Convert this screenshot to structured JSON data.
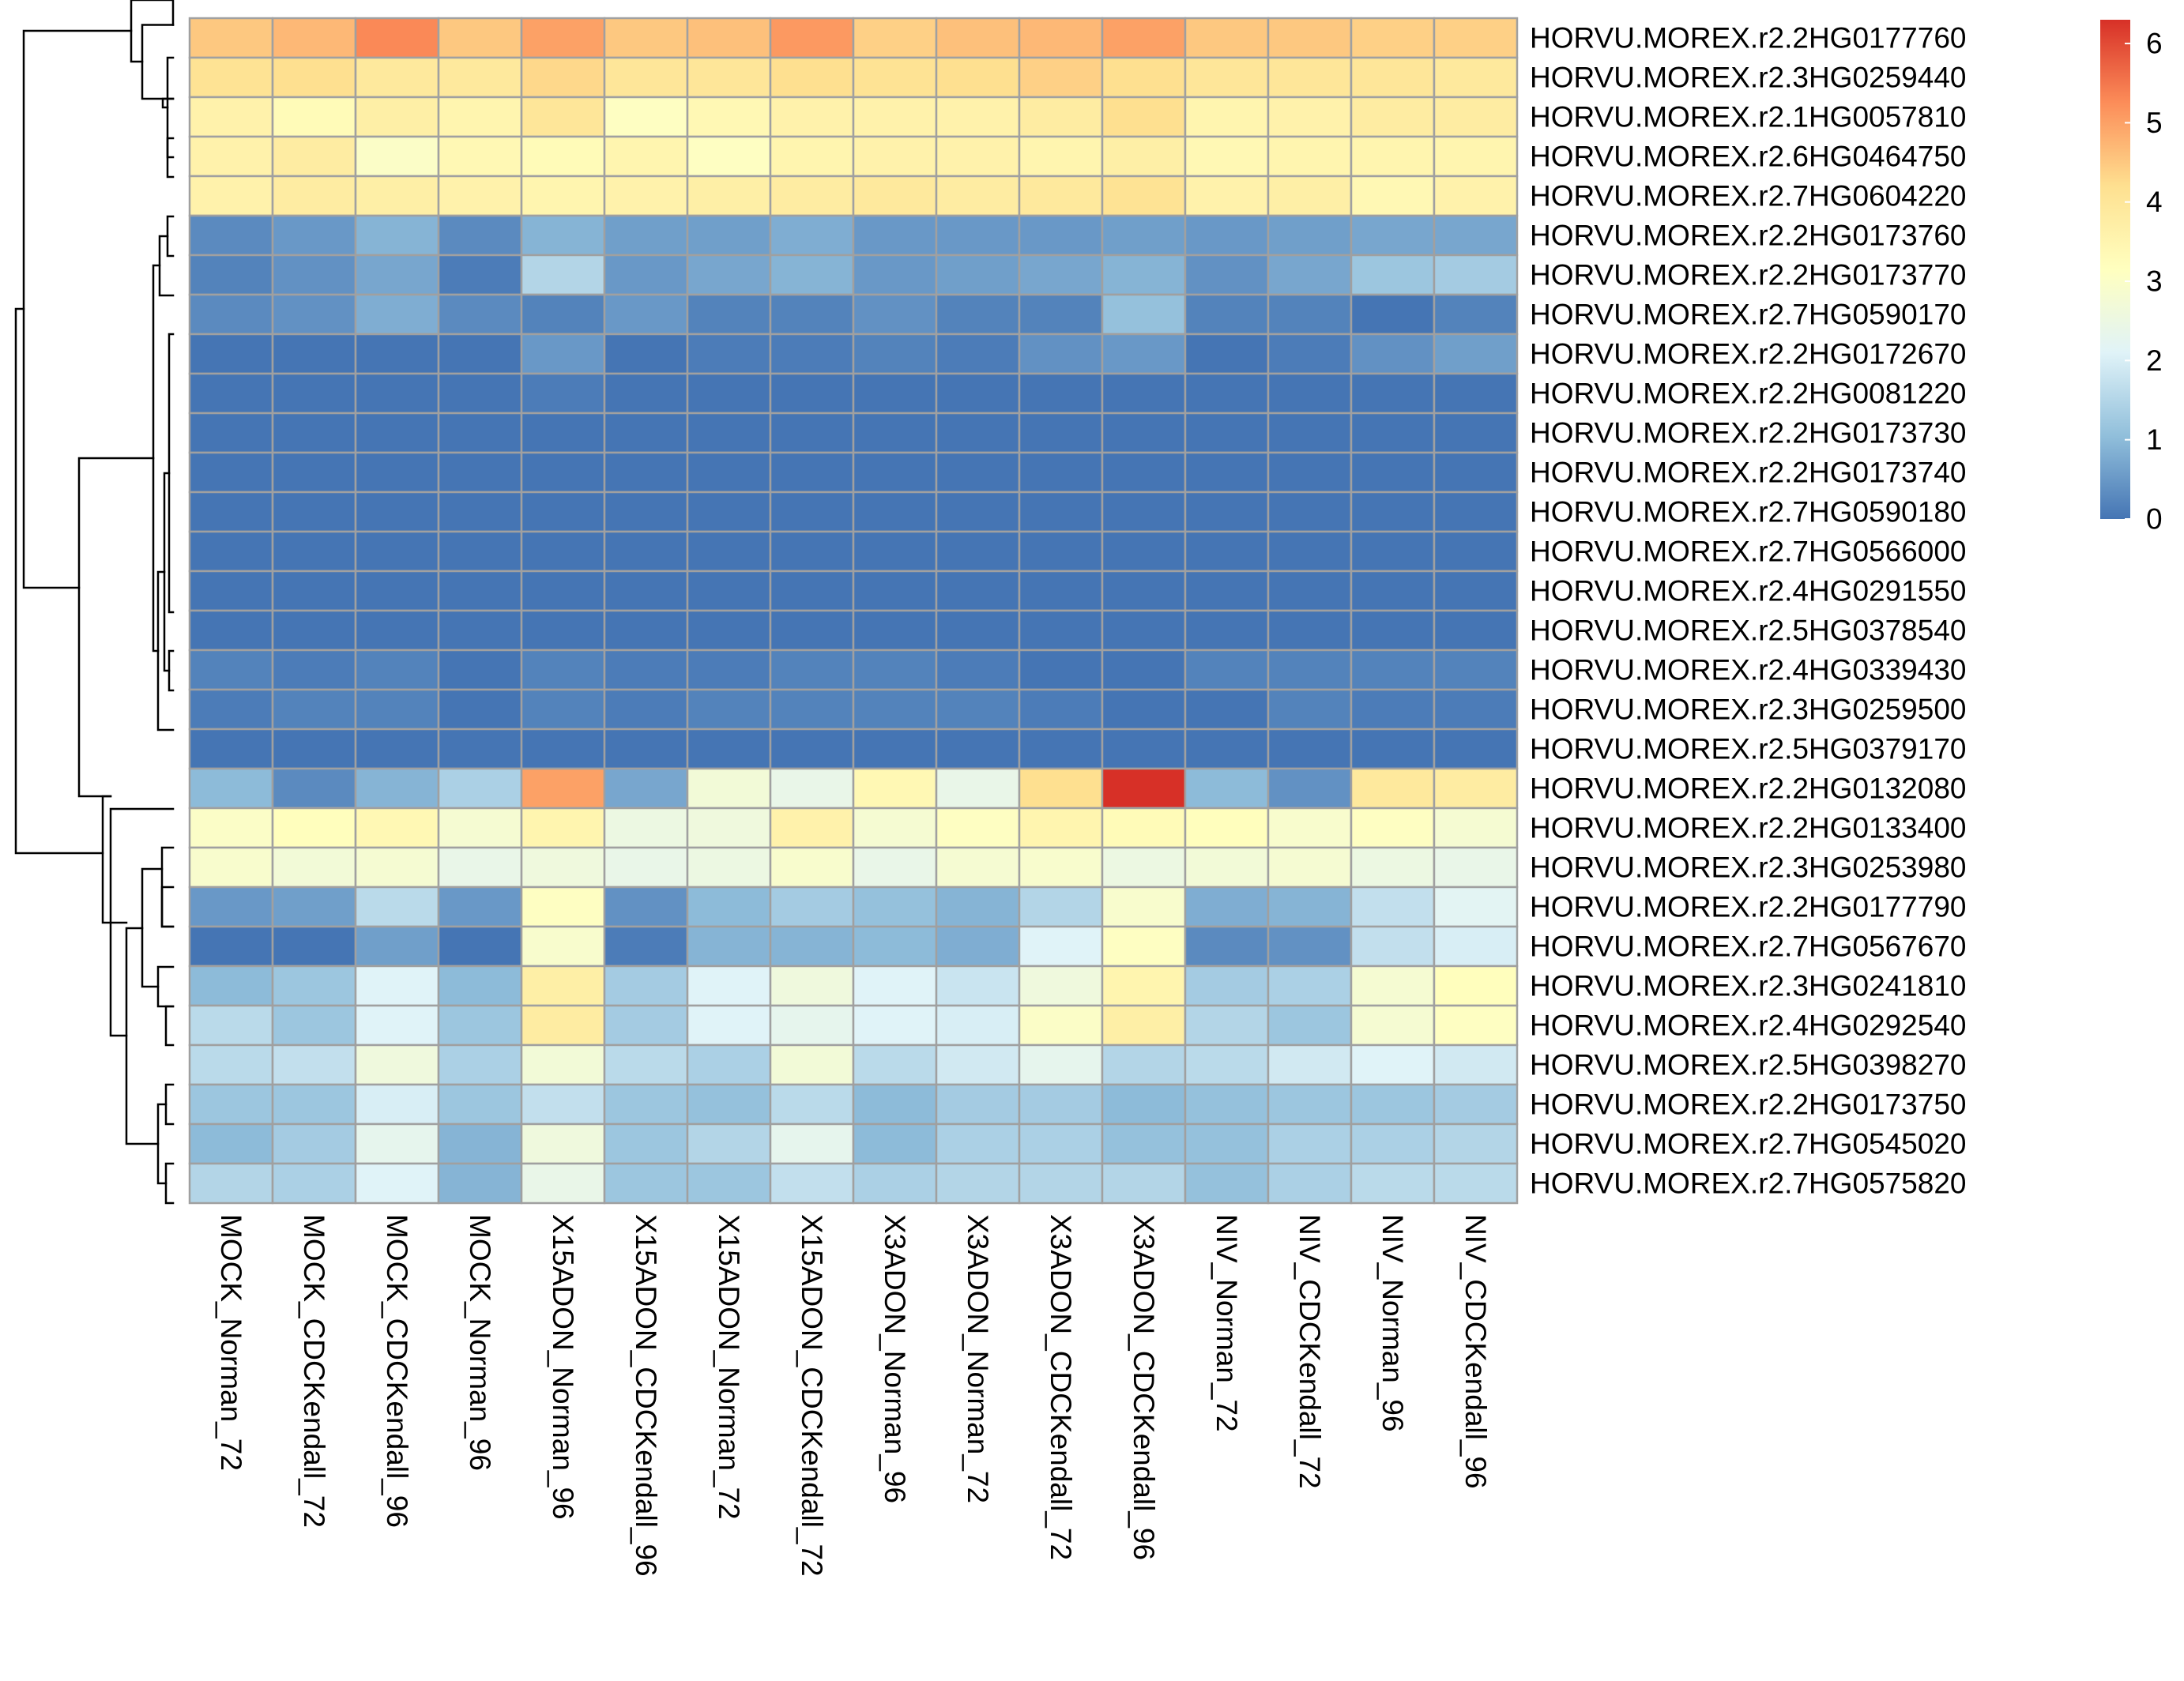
{
  "chart_data": {
    "type": "heatmap",
    "title": "",
    "xlabel": "",
    "ylabel": "",
    "columns": [
      "MOCK_Norman_72",
      "MOCK_CDCKendall_72",
      "MOCK_CDCKendall_96",
      "MOCK_Norman_96",
      "X15ADON_Norman_96",
      "X15ADON_CDCKendall_96",
      "X15ADON_Norman_72",
      "X15ADON_CDCKendall_72",
      "X3ADON_Norman_96",
      "X3ADON_Norman_72",
      "X3ADON_CDCKendall_72",
      "X3ADON_CDCKendall_96",
      "NIV_Norman_72",
      "NIV_CDCKendall_72",
      "NIV_Norman_96",
      "NIV_CDCKendall_96"
    ],
    "rows": [
      "HORVU.MOREX.r2.2HG0177760",
      "HORVU.MOREX.r2.3HG0259440",
      "HORVU.MOREX.r2.1HG0057810",
      "HORVU.MOREX.r2.6HG0464750",
      "HORVU.MOREX.r2.7HG0604220",
      "HORVU.MOREX.r2.2HG0173760",
      "HORVU.MOREX.r2.2HG0173770",
      "HORVU.MOREX.r2.7HG0590170",
      "HORVU.MOREX.r2.2HG0172670",
      "HORVU.MOREX.r2.2HG0081220",
      "HORVU.MOREX.r2.2HG0173730",
      "HORVU.MOREX.r2.2HG0173740",
      "HORVU.MOREX.r2.7HG0590180",
      "HORVU.MOREX.r2.7HG0566000",
      "HORVU.MOREX.r2.4HG0291550",
      "HORVU.MOREX.r2.5HG0378540",
      "HORVU.MOREX.r2.4HG0339430",
      "HORVU.MOREX.r2.3HG0259500",
      "HORVU.MOREX.r2.5HG0379170",
      "HORVU.MOREX.r2.2HG0132080",
      "HORVU.MOREX.r2.2HG0133400",
      "HORVU.MOREX.r2.3HG0253980",
      "HORVU.MOREX.r2.2HG0177790",
      "HORVU.MOREX.r2.7HG0567670",
      "HORVU.MOREX.r2.3HG0241810",
      "HORVU.MOREX.r2.4HG0292540",
      "HORVU.MOREX.r2.5HG0398270",
      "HORVU.MOREX.r2.2HG0173750",
      "HORVU.MOREX.r2.7HG0545020",
      "HORVU.MOREX.r2.7HG0575820"
    ],
    "values": [
      [
        4.5,
        4.7,
        5.3,
        4.5,
        5.0,
        4.5,
        4.6,
        5.1,
        4.4,
        4.6,
        4.7,
        5.0,
        4.5,
        4.5,
        4.4,
        4.4
      ],
      [
        4.1,
        4.2,
        3.9,
        3.9,
        4.3,
        4.0,
        4.0,
        4.2,
        4.1,
        4.2,
        4.4,
        4.2,
        4.0,
        4.0,
        4.0,
        3.9
      ],
      [
        3.6,
        3.3,
        3.7,
        3.5,
        4.0,
        3.1,
        3.4,
        3.6,
        3.6,
        3.6,
        3.8,
        4.2,
        3.5,
        3.6,
        3.8,
        3.8
      ],
      [
        3.6,
        3.8,
        3.0,
        3.4,
        3.3,
        3.5,
        3.1,
        3.5,
        3.6,
        3.6,
        3.5,
        3.7,
        3.4,
        3.5,
        3.5,
        3.5
      ],
      [
        3.6,
        3.8,
        3.7,
        3.6,
        3.5,
        3.6,
        3.7,
        3.8,
        3.9,
        3.8,
        3.9,
        4.1,
        3.6,
        3.7,
        3.4,
        3.6
      ],
      [
        0.3,
        0.5,
        0.9,
        0.3,
        0.9,
        0.6,
        0.6,
        0.8,
        0.5,
        0.5,
        0.5,
        0.6,
        0.5,
        0.6,
        0.7,
        0.7
      ],
      [
        0.2,
        0.4,
        0.7,
        0.1,
        1.5,
        0.5,
        0.7,
        0.9,
        0.5,
        0.6,
        0.7,
        0.9,
        0.4,
        0.7,
        1.2,
        1.3
      ],
      [
        0.3,
        0.4,
        0.8,
        0.3,
        0.2,
        0.5,
        0.2,
        0.2,
        0.4,
        0.2,
        0.2,
        1.1,
        0.2,
        0.2,
        0.0,
        0.2
      ],
      [
        0.0,
        0.0,
        0.0,
        0.0,
        0.5,
        0.0,
        0.1,
        0.1,
        0.2,
        0.1,
        0.4,
        0.5,
        0.0,
        0.1,
        0.4,
        0.6
      ],
      [
        0.0,
        0.0,
        0.0,
        0.0,
        0.1,
        0.0,
        0.0,
        0.0,
        0.0,
        0.0,
        0.0,
        0.0,
        0.0,
        0.0,
        0.0,
        0.0
      ],
      [
        0.0,
        0.0,
        0.0,
        0.0,
        0.0,
        0.0,
        0.0,
        0.0,
        0.0,
        0.0,
        0.0,
        0.0,
        0.0,
        0.0,
        0.0,
        0.0
      ],
      [
        0.0,
        0.0,
        0.0,
        0.0,
        0.0,
        0.0,
        0.0,
        0.0,
        0.0,
        0.0,
        0.0,
        0.0,
        0.0,
        0.0,
        0.0,
        0.0
      ],
      [
        0.0,
        0.0,
        0.0,
        0.0,
        0.0,
        0.0,
        0.0,
        0.0,
        0.0,
        0.0,
        0.0,
        0.0,
        0.0,
        0.0,
        0.0,
        0.0
      ],
      [
        0.0,
        0.0,
        0.0,
        0.0,
        0.0,
        0.0,
        0.0,
        0.0,
        0.0,
        0.0,
        0.0,
        0.0,
        0.0,
        0.0,
        0.0,
        0.0
      ],
      [
        0.0,
        0.0,
        0.0,
        0.0,
        0.0,
        0.0,
        0.0,
        0.0,
        0.0,
        0.0,
        0.0,
        0.0,
        0.0,
        0.0,
        0.0,
        0.0
      ],
      [
        0.0,
        0.0,
        0.0,
        0.0,
        0.0,
        0.0,
        0.0,
        0.0,
        0.0,
        0.0,
        0.0,
        0.0,
        0.0,
        0.0,
        0.0,
        0.0
      ],
      [
        0.2,
        0.1,
        0.2,
        0.0,
        0.2,
        0.1,
        0.1,
        0.2,
        0.2,
        0.1,
        0.0,
        0.0,
        0.2,
        0.2,
        0.2,
        0.2
      ],
      [
        0.1,
        0.2,
        0.2,
        0.0,
        0.2,
        0.1,
        0.2,
        0.2,
        0.2,
        0.2,
        0.1,
        0.0,
        0.0,
        0.2,
        0.1,
        0.1
      ],
      [
        0.0,
        0.0,
        0.0,
        0.0,
        0.0,
        0.0,
        0.0,
        0.0,
        0.0,
        0.0,
        0.0,
        0.0,
        0.0,
        0.0,
        0.0,
        0.0
      ],
      [
        1.0,
        0.3,
        0.9,
        1.4,
        5.0,
        0.7,
        2.7,
        2.4,
        3.4,
        2.4,
        4.2,
        6.3,
        1.0,
        0.4,
        3.9,
        3.8
      ],
      [
        3.0,
        3.2,
        3.4,
        2.8,
        3.5,
        2.5,
        2.6,
        3.6,
        2.8,
        3.1,
        3.5,
        3.3,
        3.2,
        2.9,
        3.1,
        2.8
      ],
      [
        2.9,
        2.7,
        2.8,
        2.4,
        2.6,
        2.4,
        2.5,
        2.9,
        2.4,
        2.8,
        2.9,
        2.5,
        2.7,
        2.8,
        2.5,
        2.4
      ],
      [
        0.5,
        0.6,
        1.6,
        0.5,
        3.1,
        0.4,
        1.0,
        1.3,
        1.1,
        0.9,
        1.5,
        2.9,
        0.8,
        0.9,
        1.7,
        2.2
      ],
      [
        0.0,
        0.0,
        0.6,
        0.0,
        2.9,
        0.1,
        0.9,
        0.9,
        1.0,
        0.8,
        2.1,
        3.1,
        0.3,
        0.4,
        1.7,
        2.0
      ],
      [
        1.0,
        1.2,
        2.1,
        1.0,
        3.7,
        1.3,
        2.1,
        2.6,
        2.1,
        1.8,
        2.6,
        3.5,
        1.3,
        1.4,
        2.8,
        3.2
      ],
      [
        1.6,
        1.2,
        2.1,
        1.2,
        3.8,
        1.3,
        2.1,
        2.3,
        2.1,
        2.0,
        3.0,
        3.7,
        1.5,
        1.2,
        2.8,
        3.1
      ],
      [
        1.6,
        1.7,
        2.6,
        1.4,
        2.7,
        1.6,
        1.4,
        2.7,
        1.6,
        1.9,
        2.3,
        1.5,
        1.6,
        1.9,
        2.1,
        1.9
      ],
      [
        1.2,
        1.2,
        2.0,
        1.2,
        1.7,
        1.2,
        1.1,
        1.6,
        1.0,
        1.3,
        1.3,
        1.0,
        1.1,
        1.2,
        1.2,
        1.3
      ],
      [
        1.0,
        1.3,
        2.3,
        0.9,
        2.6,
        1.2,
        1.5,
        2.3,
        1.0,
        1.4,
        1.4,
        1.1,
        1.1,
        1.4,
        1.4,
        1.5
      ],
      [
        1.5,
        1.4,
        2.1,
        0.9,
        2.4,
        1.2,
        1.2,
        1.7,
        1.4,
        1.5,
        1.5,
        1.5,
        1.1,
        1.4,
        1.6,
        1.6
      ]
    ],
    "colorbar": {
      "range": [
        0,
        6.3
      ],
      "ticks": [
        0,
        1,
        2,
        3,
        4,
        5,
        6
      ],
      "colors": [
        "#4575B4",
        "#91BFDB",
        "#E0F3F8",
        "#FFFFBF",
        "#FEE090",
        "#FC8D59",
        "#D73027"
      ]
    },
    "row_dendrogram": "shown",
    "cell_border_color": "#A0A0A0",
    "dendrogram_color": "#000000"
  }
}
